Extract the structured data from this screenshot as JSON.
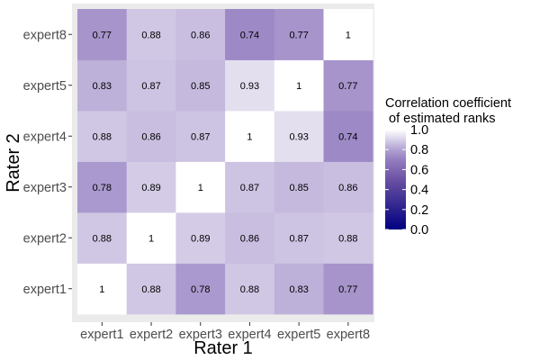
{
  "chart_data": {
    "type": "heatmap",
    "xlabel": "Rater 1",
    "ylabel": "Rater 2",
    "x_categories": [
      "expert1",
      "expert2",
      "expert3",
      "expert4",
      "expert5",
      "expert8"
    ],
    "y_categories": [
      "expert1",
      "expert2",
      "expert3",
      "expert4",
      "expert5",
      "expert8"
    ],
    "values": [
      [
        1,
        0.88,
        0.78,
        0.88,
        0.83,
        0.77
      ],
      [
        0.88,
        1,
        0.89,
        0.86,
        0.87,
        0.88
      ],
      [
        0.78,
        0.89,
        1,
        0.87,
        0.85,
        0.86
      ],
      [
        0.88,
        0.86,
        0.87,
        1,
        0.93,
        0.74
      ],
      [
        0.83,
        0.87,
        0.85,
        0.93,
        1,
        0.77
      ],
      [
        0.77,
        0.88,
        0.86,
        0.74,
        0.77,
        1
      ]
    ],
    "value_labels": [
      [
        "1",
        "0.88",
        "0.78",
        "0.88",
        "0.83",
        "0.77"
      ],
      [
        "0.88",
        "1",
        "0.89",
        "0.86",
        "0.87",
        "0.88"
      ],
      [
        "0.78",
        "0.89",
        "1",
        "0.87",
        "0.85",
        "0.86"
      ],
      [
        "0.88",
        "0.86",
        "0.87",
        "1",
        "0.93",
        "0.74"
      ],
      [
        "0.83",
        "0.87",
        "0.85",
        "0.93",
        "1",
        "0.77"
      ],
      [
        "0.77",
        "0.88",
        "0.86",
        "0.74",
        "0.77",
        "1"
      ]
    ],
    "legend": {
      "title_lines": [
        "Correlation coefficient",
        " of estimated ranks"
      ],
      "range": [
        0,
        1
      ],
      "ticks": [
        1.0,
        0.8,
        0.6,
        0.4,
        0.2,
        0.0
      ],
      "tick_labels": [
        "1.0",
        "0.8",
        "0.6",
        "0.4",
        "0.2",
        "0.0"
      ],
      "low_color": "#000080",
      "high_color": "#ffffff",
      "placement": "right"
    },
    "panel_background": "#ebebeb"
  }
}
